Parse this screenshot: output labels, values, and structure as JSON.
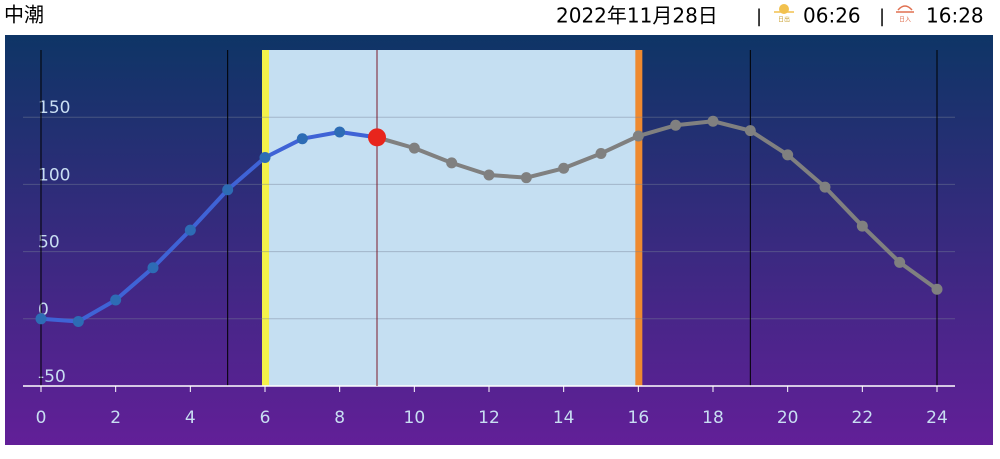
{
  "header": {
    "title": "中潮",
    "date": "2022年11月28日",
    "separator": "|",
    "sunrise_icon": "日出",
    "sunrise": "06:26",
    "sunset_icon": "日入",
    "sunset": "16:28"
  },
  "chart_data": {
    "type": "line",
    "x": [
      0,
      1,
      2,
      3,
      4,
      5,
      6,
      7,
      8,
      9,
      10,
      11,
      12,
      13,
      14,
      15,
      16,
      17,
      18,
      19,
      20,
      21,
      22,
      23,
      24
    ],
    "values": [
      0,
      -2,
      14,
      38,
      66,
      96,
      120,
      134,
      139,
      135,
      127,
      116,
      107,
      105,
      112,
      123,
      136,
      144,
      147,
      140,
      122,
      98,
      69,
      42,
      22
    ],
    "now": 9,
    "daylight": [
      6,
      16
    ],
    "vlines": [
      5,
      19,
      24
    ],
    "past_color": "#3f63d6",
    "future_color": "#808080",
    "now_color": "#e8251c",
    "xlim": [
      0,
      24
    ],
    "xticks": [
      0,
      2,
      4,
      6,
      8,
      10,
      12,
      14,
      16,
      18,
      20,
      22,
      24
    ],
    "ylim": [
      -50,
      200
    ],
    "yticks": [
      -50,
      0,
      50,
      100,
      150
    ],
    "grid": true
  }
}
